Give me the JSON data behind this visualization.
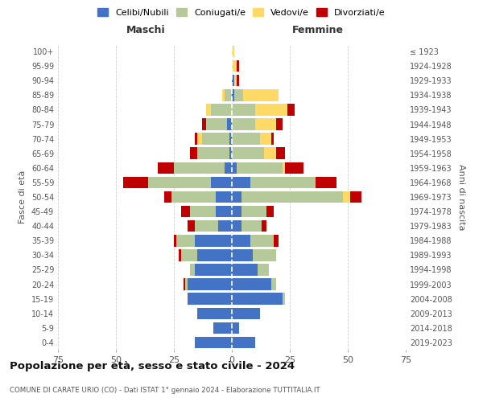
{
  "age_groups": [
    "0-4",
    "5-9",
    "10-14",
    "15-19",
    "20-24",
    "25-29",
    "30-34",
    "35-39",
    "40-44",
    "45-49",
    "50-54",
    "55-59",
    "60-64",
    "65-69",
    "70-74",
    "75-79",
    "80-84",
    "85-89",
    "90-94",
    "95-99",
    "100+"
  ],
  "birth_years": [
    "2019-2023",
    "2014-2018",
    "2009-2013",
    "2004-2008",
    "1999-2003",
    "1994-1998",
    "1989-1993",
    "1984-1988",
    "1979-1983",
    "1974-1978",
    "1969-1973",
    "1964-1968",
    "1959-1963",
    "1954-1958",
    "1949-1953",
    "1944-1948",
    "1939-1943",
    "1934-1938",
    "1929-1933",
    "1924-1928",
    "≤ 1923"
  ],
  "maschi": {
    "celibi": [
      16,
      8,
      15,
      19,
      19,
      16,
      15,
      16,
      6,
      7,
      7,
      9,
      3,
      1,
      1,
      2,
      0,
      0,
      0,
      0,
      0
    ],
    "coniugati": [
      0,
      0,
      0,
      0,
      1,
      2,
      7,
      8,
      10,
      11,
      19,
      27,
      22,
      14,
      12,
      9,
      9,
      3,
      0,
      0,
      0
    ],
    "vedovi": [
      0,
      0,
      0,
      0,
      0,
      0,
      0,
      0,
      0,
      0,
      0,
      0,
      0,
      0,
      2,
      0,
      2,
      1,
      0,
      0,
      0
    ],
    "divorziati": [
      0,
      0,
      0,
      0,
      1,
      0,
      1,
      1,
      3,
      4,
      3,
      11,
      7,
      3,
      1,
      2,
      0,
      0,
      0,
      0,
      0
    ]
  },
  "femmine": {
    "nubili": [
      10,
      3,
      12,
      22,
      17,
      11,
      9,
      8,
      4,
      4,
      4,
      8,
      2,
      0,
      0,
      0,
      0,
      1,
      1,
      0,
      0
    ],
    "coniugate": [
      0,
      0,
      0,
      1,
      2,
      5,
      10,
      10,
      9,
      11,
      44,
      28,
      20,
      14,
      12,
      10,
      10,
      4,
      0,
      0,
      0
    ],
    "vedove": [
      0,
      0,
      0,
      0,
      0,
      0,
      0,
      0,
      0,
      0,
      3,
      0,
      1,
      5,
      5,
      9,
      14,
      15,
      1,
      2,
      1
    ],
    "divorziate": [
      0,
      0,
      0,
      0,
      0,
      0,
      0,
      2,
      2,
      3,
      5,
      9,
      8,
      4,
      1,
      3,
      3,
      0,
      1,
      1,
      0
    ]
  },
  "colors": {
    "celibi": "#4472c4",
    "coniugati": "#b5c99a",
    "vedovi": "#ffd966",
    "divorziati": "#c00000"
  },
  "title": "Popolazione per età, sesso e stato civile - 2024",
  "subtitle": "COMUNE DI CARATE URIO (CO) - Dati ISTAT 1° gennaio 2024 - Elaborazione TUTTITALIA.IT",
  "xlabel_left": "Maschi",
  "xlabel_right": "Femmine",
  "ylabel_left": "Fasce di età",
  "ylabel_right": "Anni di nascita",
  "xlim": 75,
  "legend_labels": [
    "Celibi/Nubili",
    "Coniugati/e",
    "Vedovi/e",
    "Divorziati/e"
  ],
  "background_color": "#ffffff",
  "grid_color": "#cccccc"
}
